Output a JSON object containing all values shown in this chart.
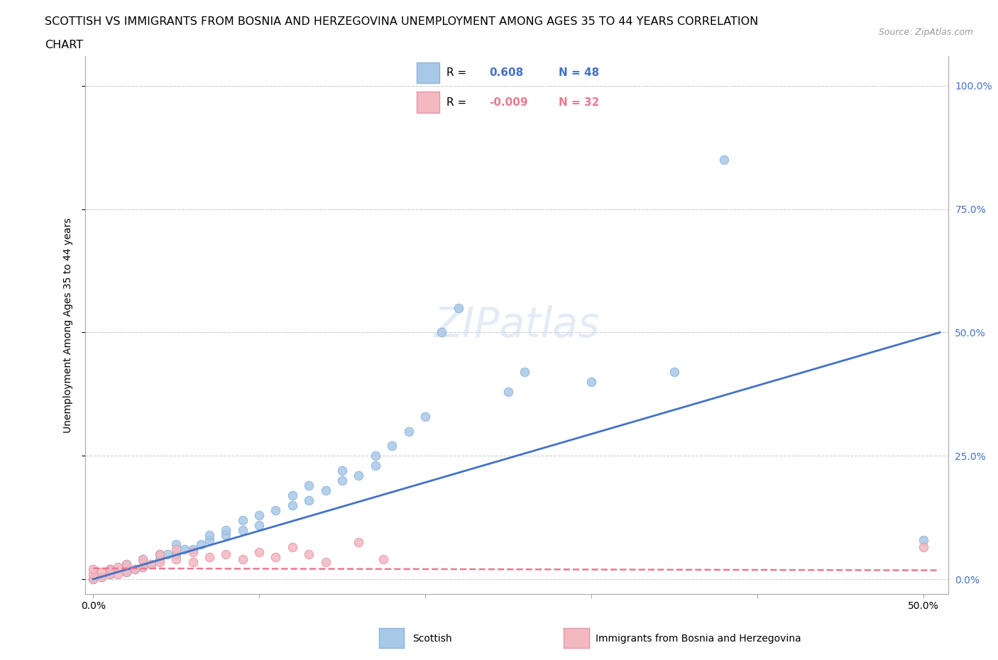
{
  "title_line1": "SCOTTISH VS IMMIGRANTS FROM BOSNIA AND HERZEGOVINA UNEMPLOYMENT AMONG AGES 35 TO 44 YEARS CORRELATION",
  "title_line2": "CHART",
  "source": "Source: ZipAtlas.com",
  "ylabel": "Unemployment Among Ages 35 to 44 years",
  "x_ticks": [
    0.0,
    0.1,
    0.2,
    0.3,
    0.4,
    0.5
  ],
  "x_tick_labels": [
    "0.0%",
    "",
    "",
    "",
    "",
    "50.0%"
  ],
  "y_ticks": [
    0.0,
    0.25,
    0.5,
    0.75,
    1.0
  ],
  "y_tick_labels_right": [
    "0.0%",
    "25.0%",
    "50.0%",
    "75.0%",
    "100.0%"
  ],
  "xlim": [
    -0.005,
    0.515
  ],
  "ylim": [
    -0.03,
    1.06
  ],
  "scottish_color": "#a8c8e8",
  "bosnian_color": "#f4b8c0",
  "sc_line_color": "#4472c4",
  "bo_line_color": "#e87a90",
  "scottish_R": 0.608,
  "scottish_N": 48,
  "bosnian_R": -0.009,
  "bosnian_N": 32,
  "scottish_scatter": [
    [
      0.0,
      0.0
    ],
    [
      0.005,
      0.005
    ],
    [
      0.01,
      0.01
    ],
    [
      0.01,
      0.02
    ],
    [
      0.02,
      0.015
    ],
    [
      0.02,
      0.03
    ],
    [
      0.025,
      0.02
    ],
    [
      0.03,
      0.025
    ],
    [
      0.03,
      0.04
    ],
    [
      0.035,
      0.03
    ],
    [
      0.04,
      0.04
    ],
    [
      0.04,
      0.05
    ],
    [
      0.045,
      0.05
    ],
    [
      0.05,
      0.05
    ],
    [
      0.05,
      0.07
    ],
    [
      0.055,
      0.06
    ],
    [
      0.06,
      0.06
    ],
    [
      0.065,
      0.07
    ],
    [
      0.07,
      0.08
    ],
    [
      0.07,
      0.09
    ],
    [
      0.08,
      0.09
    ],
    [
      0.08,
      0.1
    ],
    [
      0.09,
      0.1
    ],
    [
      0.09,
      0.12
    ],
    [
      0.1,
      0.11
    ],
    [
      0.1,
      0.13
    ],
    [
      0.11,
      0.14
    ],
    [
      0.12,
      0.15
    ],
    [
      0.12,
      0.17
    ],
    [
      0.13,
      0.16
    ],
    [
      0.13,
      0.19
    ],
    [
      0.14,
      0.18
    ],
    [
      0.15,
      0.2
    ],
    [
      0.15,
      0.22
    ],
    [
      0.16,
      0.21
    ],
    [
      0.17,
      0.23
    ],
    [
      0.17,
      0.25
    ],
    [
      0.18,
      0.27
    ],
    [
      0.19,
      0.3
    ],
    [
      0.2,
      0.33
    ],
    [
      0.21,
      0.5
    ],
    [
      0.22,
      0.55
    ],
    [
      0.25,
      0.38
    ],
    [
      0.26,
      0.42
    ],
    [
      0.3,
      0.4
    ],
    [
      0.35,
      0.42
    ],
    [
      0.38,
      0.85
    ],
    [
      0.5,
      0.08
    ]
  ],
  "bosnian_scatter": [
    [
      0.0,
      0.0
    ],
    [
      0.0,
      0.01
    ],
    [
      0.0,
      0.02
    ],
    [
      0.005,
      0.005
    ],
    [
      0.005,
      0.015
    ],
    [
      0.01,
      0.01
    ],
    [
      0.01,
      0.02
    ],
    [
      0.015,
      0.01
    ],
    [
      0.015,
      0.025
    ],
    [
      0.02,
      0.015
    ],
    [
      0.02,
      0.03
    ],
    [
      0.025,
      0.02
    ],
    [
      0.03,
      0.025
    ],
    [
      0.03,
      0.04
    ],
    [
      0.035,
      0.03
    ],
    [
      0.04,
      0.035
    ],
    [
      0.04,
      0.05
    ],
    [
      0.05,
      0.04
    ],
    [
      0.05,
      0.06
    ],
    [
      0.06,
      0.035
    ],
    [
      0.06,
      0.055
    ],
    [
      0.07,
      0.045
    ],
    [
      0.08,
      0.05
    ],
    [
      0.09,
      0.04
    ],
    [
      0.1,
      0.055
    ],
    [
      0.11,
      0.045
    ],
    [
      0.12,
      0.065
    ],
    [
      0.13,
      0.05
    ],
    [
      0.14,
      0.035
    ],
    [
      0.16,
      0.075
    ],
    [
      0.175,
      0.04
    ],
    [
      0.5,
      0.065
    ]
  ],
  "background_color": "#ffffff",
  "grid_color": "#cccccc",
  "watermark": "ZIPatlas",
  "sc_label": "Scottish",
  "bo_label": "Immigrants from Bosnia and Herzegovina"
}
